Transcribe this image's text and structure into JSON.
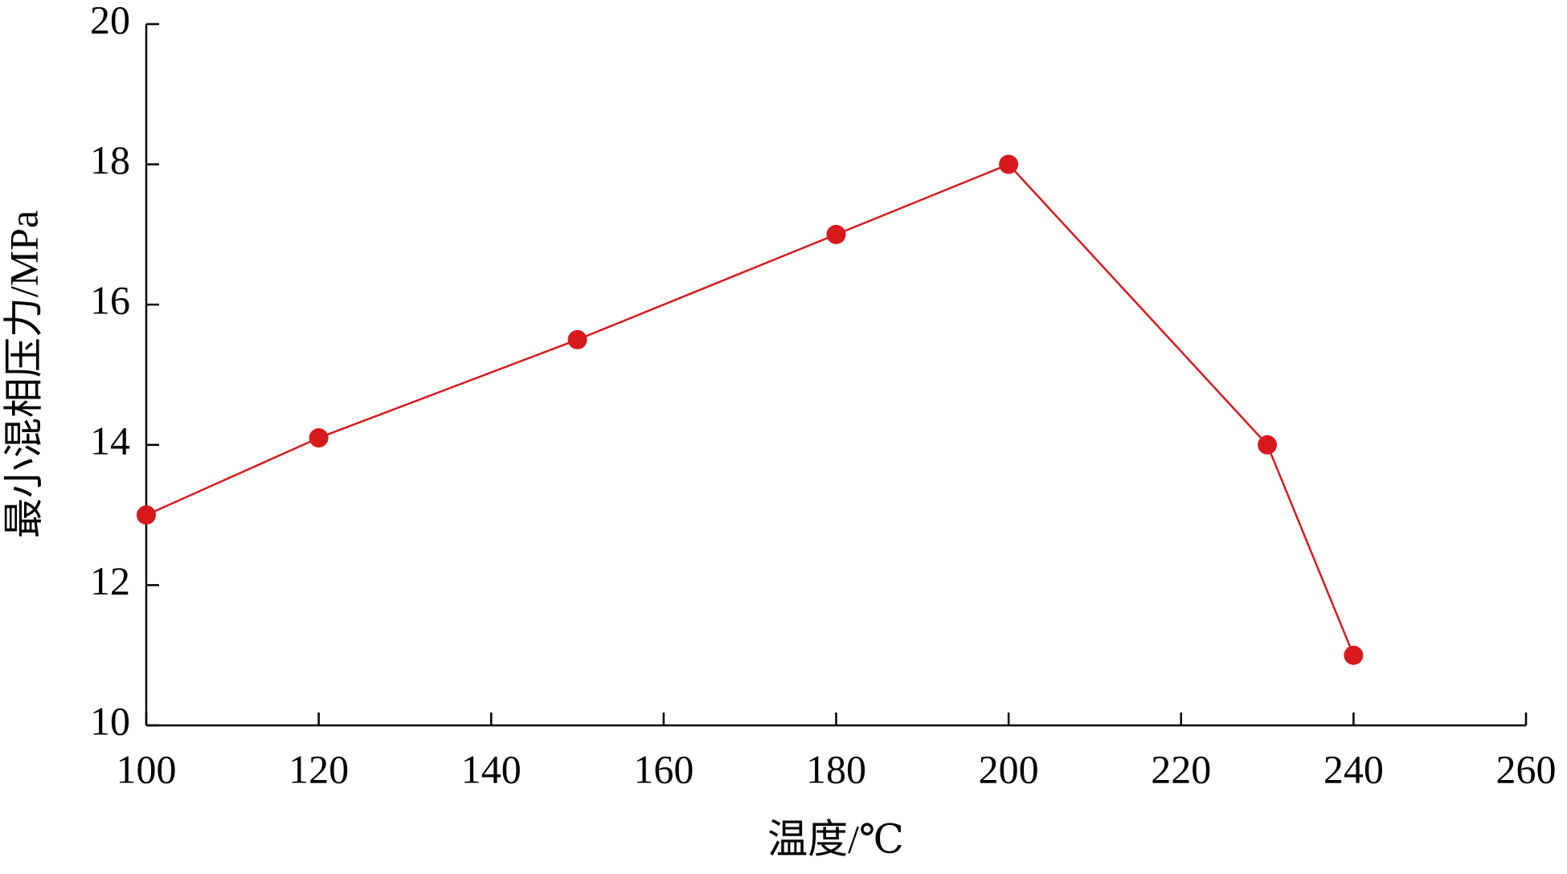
{
  "chart_data": {
    "type": "line",
    "x_label": "温度/℃",
    "y_label": "最小混相压力/MPa",
    "x": [
      100,
      120,
      150,
      180,
      200,
      230,
      240
    ],
    "series": [
      {
        "color": "#d7191c",
        "values": [
          13,
          14.1,
          15.5,
          17,
          18,
          14,
          11
        ]
      }
    ],
    "xlim": [
      100,
      260
    ],
    "xticks": [
      100,
      120,
      140,
      160,
      180,
      200,
      220,
      240,
      260
    ],
    "ylim": [
      10,
      20
    ],
    "yticks": [
      10,
      12,
      14,
      16,
      18,
      20
    ]
  }
}
